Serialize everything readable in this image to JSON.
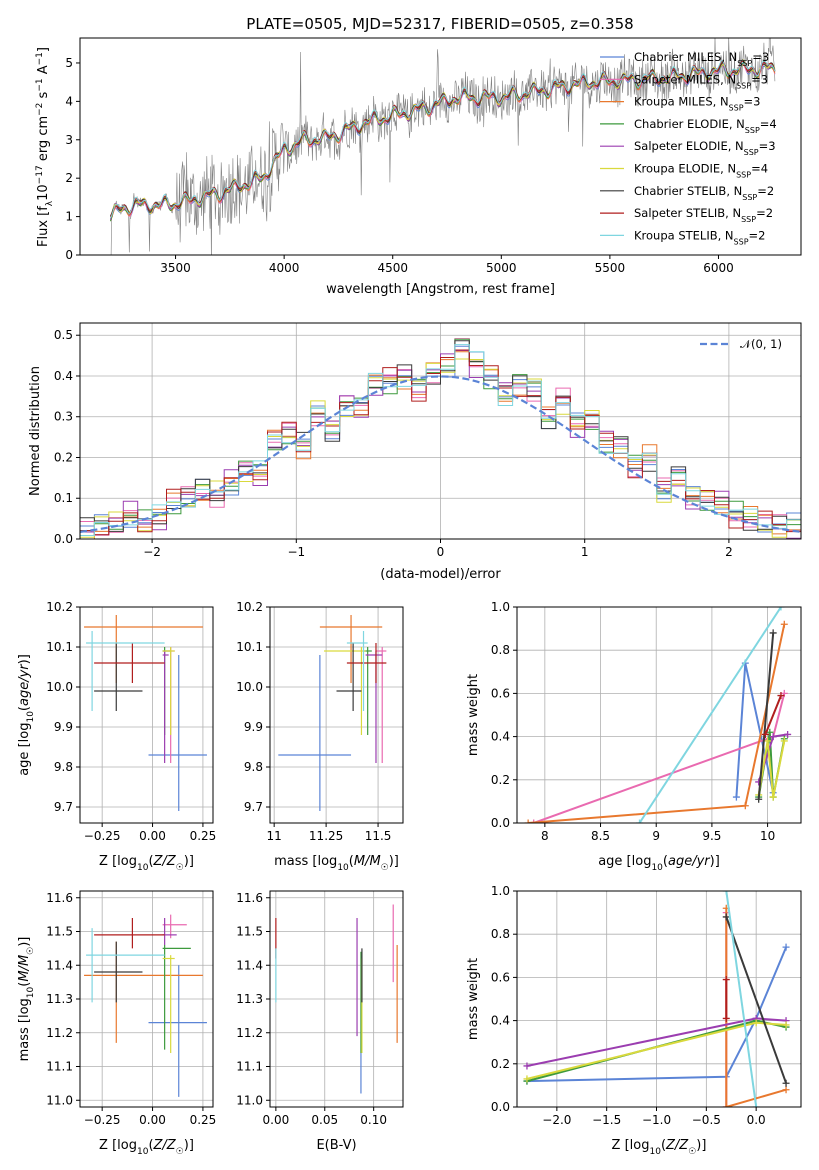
{
  "figure": {
    "title": "PLATE=0505, MJD=52317, FIBERID=0505, z=0.358"
  },
  "series_names": [
    "Chabrier MILES, N_SSP=3",
    "Salpeter MILES, N_SSP=3",
    "Kroupa MILES, N_SSP=3",
    "Chabrier ELODIE, N_SSP=4",
    "Salpeter ELODIE, N_SSP=3",
    "Kroupa ELODIE, N_SSP=4",
    "Chabrier STELIB, N_SSP=2",
    "Salpeter STELIB, N_SSP=2",
    "Kroupa STELIB, N_SSP=2"
  ],
  "colors": [
    "#5b84d6",
    "#e96ab0",
    "#e8782e",
    "#3d9a3d",
    "#9b3db0",
    "#d9d93d",
    "#3a3a3a",
    "#b01e1e",
    "#7fd6e0"
  ],
  "chart_data": [
    {
      "id": "spectrum",
      "type": "line",
      "title": "PLATE=0505, MJD=52317, FIBERID=0505, z=0.358",
      "xlabel": "wavelength [Angstrom, rest frame]",
      "ylabel": "Flux [f_λ 10^-17 erg cm^-2 s^-1 A^-1]",
      "xlim": [
        3060,
        6380
      ],
      "ylim": [
        0,
        5.65
      ],
      "xticks": [
        3500,
        4000,
        4500,
        5000,
        5500,
        6000
      ],
      "yticks": [
        0,
        1,
        2,
        3,
        4,
        5
      ],
      "grid": false,
      "legend": "top-right",
      "data_color": "#808080",
      "model_points": {
        "x": [
          3200,
          3300,
          3450,
          3550,
          3700,
          3800,
          3900,
          4000,
          4100,
          4200,
          4400,
          4600,
          4800,
          5000,
          5200,
          5400,
          5600,
          5800,
          6000,
          6200
        ],
        "y": [
          1.05,
          1.3,
          1.3,
          1.4,
          1.6,
          1.8,
          2.0,
          2.75,
          3.0,
          3.05,
          3.5,
          3.75,
          4.1,
          4.1,
          4.3,
          4.5,
          4.55,
          4.65,
          4.8,
          4.85
        ]
      }
    },
    {
      "id": "residuals",
      "type": "line",
      "xlabel": "(data-model)/error",
      "ylabel": "Normed distribution",
      "xlim": [
        -2.5,
        2.5
      ],
      "ylim": [
        0,
        0.53
      ],
      "xticks": [
        -2,
        -1,
        0,
        1,
        2
      ],
      "yticks": [
        0.0,
        0.1,
        0.2,
        0.3,
        0.4,
        0.5
      ],
      "grid": true,
      "legend": "top-right",
      "reference_label": "𝒩(0, 1)",
      "reference_color": "#5b84d6",
      "bin_centers": [
        -2.45,
        -2.35,
        -2.25,
        -2.15,
        -2.05,
        -1.95,
        -1.85,
        -1.75,
        -1.65,
        -1.55,
        -1.45,
        -1.35,
        -1.25,
        -1.15,
        -1.05,
        -0.95,
        -0.85,
        -0.75,
        -0.65,
        -0.55,
        -0.45,
        -0.35,
        -0.25,
        -0.15,
        -0.05,
        0.05,
        0.15,
        0.25,
        0.35,
        0.45,
        0.55,
        0.65,
        0.75,
        0.85,
        0.95,
        1.05,
        1.15,
        1.25,
        1.35,
        1.45,
        1.55,
        1.65,
        1.75,
        1.85,
        1.95,
        2.05,
        2.15,
        2.25,
        2.35,
        2.45
      ],
      "histogram": [
        0.02,
        0.03,
        0.04,
        0.06,
        0.04,
        0.05,
        0.09,
        0.1,
        0.12,
        0.11,
        0.14,
        0.17,
        0.16,
        0.24,
        0.26,
        0.23,
        0.31,
        0.27,
        0.33,
        0.32,
        0.38,
        0.39,
        0.4,
        0.37,
        0.41,
        0.43,
        0.47,
        0.43,
        0.4,
        0.36,
        0.38,
        0.37,
        0.3,
        0.34,
        0.28,
        0.29,
        0.24,
        0.23,
        0.18,
        0.2,
        0.12,
        0.15,
        0.1,
        0.1,
        0.09,
        0.06,
        0.05,
        0.04,
        0.03,
        0.03
      ]
    },
    {
      "id": "Z-age",
      "type": "scatter",
      "xlabel": "Z [log10(Z/Z☉)]",
      "ylabel": "age [log10(age/yr)]",
      "xlim": [
        -0.36,
        0.3
      ],
      "ylim": [
        9.66,
        10.2
      ],
      "xticks": [
        -0.25,
        0.0,
        0.25
      ],
      "xtick_labels": [
        "−0.25",
        "0.00",
        "0.25"
      ],
      "yticks": [
        9.7,
        9.8,
        9.9,
        10.0,
        10.1,
        10.2
      ],
      "grid": true,
      "points": [
        {
          "x": 0.13,
          "y": 9.83,
          "xerr": [
            0.15,
            0.14
          ],
          "yerr": [
            0.14,
            0.25
          ]
        },
        {
          "x": 0.09,
          "y": 10.09,
          "xerr": [
            0.04,
            0.02
          ],
          "yerr": [
            0.28,
            0.01
          ]
        },
        {
          "x": -0.18,
          "y": 10.15,
          "xerr": [
            0.16,
            0.43
          ],
          "yerr": [
            0.14,
            0.03
          ]
        },
        {
          "x": 0.06,
          "y": 10.09,
          "xerr": [
            0.01,
            0.03
          ],
          "yerr": [
            0.21,
            0.01
          ]
        },
        {
          "x": 0.06,
          "y": 10.08,
          "xerr": [
            0.01,
            0.02
          ],
          "yerr": [
            0.27,
            0.01
          ]
        },
        {
          "x": 0.09,
          "y": 10.09,
          "xerr": [
            0.04,
            0.02
          ],
          "yerr": [
            0.21,
            0.01
          ]
        },
        {
          "x": -0.18,
          "y": 9.99,
          "xerr": [
            0.11,
            0.13
          ],
          "yerr": [
            0.05,
            0.12
          ]
        },
        {
          "x": -0.1,
          "y": 10.06,
          "xerr": [
            0.19,
            0.16
          ],
          "yerr": [
            0.05,
            0.05
          ]
        },
        {
          "x": -0.3,
          "y": 10.11,
          "xerr": [
            0.03,
            0.36
          ],
          "yerr": [
            0.17,
            0.03
          ]
        }
      ]
    },
    {
      "id": "mass-age",
      "type": "scatter",
      "xlabel": "mass [log10(M/M☉)]",
      "ylabel": "",
      "xlim": [
        10.98,
        11.62
      ],
      "ylim": [
        9.66,
        10.2
      ],
      "xticks": [
        11.0,
        11.25,
        11.5
      ],
      "yticks": [
        9.7,
        9.8,
        9.9,
        10.0,
        10.1,
        10.2
      ],
      "grid": true,
      "points": [
        {
          "x": 11.22,
          "y": 9.83,
          "xerr": [
            0.2,
            0.15
          ],
          "yerr": [
            0.14,
            0.25
          ]
        },
        {
          "x": 11.52,
          "y": 10.09,
          "xerr": [
            0.03,
            0.02
          ],
          "yerr": [
            0.28,
            0.01
          ]
        },
        {
          "x": 11.37,
          "y": 10.15,
          "xerr": [
            0.15,
            0.15
          ],
          "yerr": [
            0.14,
            0.03
          ]
        },
        {
          "x": 11.45,
          "y": 10.09,
          "xerr": [
            0.02,
            0.02
          ],
          "yerr": [
            0.21,
            0.01
          ]
        },
        {
          "x": 11.49,
          "y": 10.08,
          "xerr": [
            0.05,
            0.03
          ],
          "yerr": [
            0.27,
            0.01
          ]
        },
        {
          "x": 11.42,
          "y": 10.09,
          "xerr": [
            0.18,
            0.02
          ],
          "yerr": [
            0.21,
            0.01
          ]
        },
        {
          "x": 11.38,
          "y": 9.99,
          "xerr": [
            0.08,
            0.04
          ],
          "yerr": [
            0.05,
            0.12
          ]
        },
        {
          "x": 11.49,
          "y": 10.06,
          "xerr": [
            0.14,
            0.05
          ],
          "yerr": [
            0.05,
            0.05
          ]
        },
        {
          "x": 11.43,
          "y": 10.11,
          "xerr": [
            0.08,
            0.02
          ],
          "yerr": [
            0.17,
            0.03
          ]
        }
      ]
    },
    {
      "id": "age-weight",
      "type": "line",
      "xlabel": "age [log10(age/yr)]",
      "ylabel": "mass weight",
      "xlim": [
        7.75,
        10.3
      ],
      "ylim": [
        0,
        1
      ],
      "xticks": [
        8.0,
        8.5,
        9.0,
        9.5,
        10.0
      ],
      "yticks": [
        0.0,
        0.2,
        0.4,
        0.6,
        0.8,
        1.0
      ],
      "grid": true,
      "series": [
        {
          "name": "Chabrier MILES, N_SSP=3",
          "x": [
            9.72,
            9.8,
            10.05
          ],
          "y": [
            0.12,
            0.74,
            0.14
          ]
        },
        {
          "name": "Salpeter MILES, N_SSP=3",
          "x": [
            7.9,
            10.05,
            10.15
          ],
          "y": [
            0.0,
            0.4,
            0.6
          ]
        },
        {
          "name": "Kroupa MILES, N_SSP=3",
          "x": [
            7.85,
            9.8,
            10.15
          ],
          "y": [
            0.0,
            0.08,
            0.92
          ]
        },
        {
          "name": "Chabrier ELODIE, N_SSP=4",
          "x": [
            9.92,
            10.02,
            10.05,
            10.15
          ],
          "y": [
            0.12,
            0.42,
            0.12,
            0.39
          ]
        },
        {
          "name": "Salpeter ELODIE, N_SSP=3",
          "x": [
            9.92,
            10.05,
            10.18
          ],
          "y": [
            0.19,
            0.4,
            0.41
          ]
        },
        {
          "name": "Kroupa ELODIE, N_SSP=4",
          "x": [
            9.92,
            10.0,
            10.05,
            10.15
          ],
          "y": [
            0.13,
            0.38,
            0.12,
            0.38
          ]
        },
        {
          "name": "Chabrier STELIB, N_SSP=2",
          "x": [
            9.92,
            10.05
          ],
          "y": [
            0.11,
            0.88
          ]
        },
        {
          "name": "Salpeter STELIB, N_SSP=2",
          "x": [
            9.98,
            10.12
          ],
          "y": [
            0.41,
            0.59
          ]
        },
        {
          "name": "Kroupa STELIB, N_SSP=2",
          "x": [
            8.85,
            10.12
          ],
          "y": [
            0.0,
            1.0
          ]
        }
      ]
    },
    {
      "id": "Z-mass",
      "type": "scatter",
      "xlabel": "Z [log10(Z/Z☉)]",
      "ylabel": "mass [log10(M/M☉)]",
      "xlim": [
        -0.36,
        0.3
      ],
      "ylim": [
        10.98,
        11.62
      ],
      "xticks": [
        -0.25,
        0.0,
        0.25
      ],
      "xtick_labels": [
        "−0.25",
        "0.00",
        "0.25"
      ],
      "yticks": [
        11.0,
        11.1,
        11.2,
        11.3,
        11.4,
        11.5,
        11.6
      ],
      "grid": true,
      "points": [
        {
          "x": 0.13,
          "y": 11.23,
          "xerr": [
            0.15,
            0.14
          ],
          "yerr": [
            0.22,
            0.17
          ]
        },
        {
          "x": 0.09,
          "y": 11.52,
          "xerr": [
            0.04,
            0.08
          ],
          "yerr": [
            0.04,
            0.03
          ]
        },
        {
          "x": -0.18,
          "y": 11.37,
          "xerr": [
            0.16,
            0.43
          ],
          "yerr": [
            0.2,
            0.1
          ]
        },
        {
          "x": 0.06,
          "y": 11.45,
          "xerr": [
            0.01,
            0.13
          ],
          "yerr": [
            0.3,
            0.01
          ]
        },
        {
          "x": 0.06,
          "y": 11.49,
          "xerr": [
            0.01,
            0.06
          ],
          "yerr": [
            0.03,
            0.05
          ]
        },
        {
          "x": 0.09,
          "y": 11.42,
          "xerr": [
            0.04,
            0.02
          ],
          "yerr": [
            0.28,
            0.01
          ]
        },
        {
          "x": -0.18,
          "y": 11.38,
          "xerr": [
            0.11,
            0.13
          ],
          "yerr": [
            0.09,
            0.09
          ]
        },
        {
          "x": -0.1,
          "y": 11.49,
          "xerr": [
            0.19,
            0.16
          ],
          "yerr": [
            0.04,
            0.05
          ]
        },
        {
          "x": -0.3,
          "y": 11.43,
          "xerr": [
            0.03,
            0.36
          ],
          "yerr": [
            0.14,
            0.08
          ]
        }
      ]
    },
    {
      "id": "ebv-mass",
      "type": "scatter",
      "xlabel": "E(B-V)",
      "ylabel": "",
      "xlim": [
        -0.006,
        0.13
      ],
      "ylim": [
        10.98,
        11.62
      ],
      "xticks": [
        0.0,
        0.05,
        0.1
      ],
      "xtick_labels": [
        "0.00",
        "0.05",
        "0.10"
      ],
      "yticks": [
        11.0,
        11.1,
        11.2,
        11.3,
        11.4,
        11.5,
        11.6
      ],
      "grid": true,
      "points": [
        {
          "x": 0.087,
          "y": 11.1,
          "xerr": [
            0,
            0
          ],
          "yerr": [
            0.08,
            0.04
          ]
        },
        {
          "x": 0.12,
          "y": 11.48,
          "xerr": [
            0,
            0
          ],
          "yerr": [
            0.13,
            0.1
          ]
        },
        {
          "x": 0.124,
          "y": 11.37,
          "xerr": [
            0,
            0
          ],
          "yerr": [
            0.2,
            0.09
          ]
        },
        {
          "x": 0.087,
          "y": 11.34,
          "xerr": [
            0,
            0
          ],
          "yerr": [
            0.2,
            0.1
          ]
        },
        {
          "x": 0.083,
          "y": 11.39,
          "xerr": [
            0,
            0
          ],
          "yerr": [
            0.2,
            0.15
          ]
        },
        {
          "x": 0.088,
          "y": 11.3,
          "xerr": [
            0,
            0
          ],
          "yerr": [
            0.16,
            0.12
          ]
        },
        {
          "x": 0.088,
          "y": 11.39,
          "xerr": [
            0,
            0
          ],
          "yerr": [
            0.1,
            0.06
          ]
        },
        {
          "x": 0.0,
          "y": 11.47,
          "xerr": [
            0,
            0
          ],
          "yerr": [
            0.05,
            0.07
          ]
        },
        {
          "x": 0.0,
          "y": 11.37,
          "xerr": [
            0,
            0
          ],
          "yerr": [
            0.08,
            0.08
          ]
        }
      ]
    },
    {
      "id": "Z-weight",
      "type": "line",
      "xlabel": "Z [log10(Z/Z☉)]",
      "ylabel": "mass weight",
      "xlim": [
        -2.4,
        0.45
      ],
      "ylim": [
        0,
        1
      ],
      "xticks": [
        -2.0,
        -1.5,
        -1.0,
        -0.5,
        0.0
      ],
      "xtick_labels": [
        "−2.0",
        "−1.5",
        "−1.0",
        "−0.5",
        "0.0"
      ],
      "yticks": [
        0.0,
        0.2,
        0.4,
        0.6,
        0.8,
        1.0
      ],
      "grid": true,
      "series": [
        {
          "name": "Chabrier MILES, N_SSP=3",
          "x": [
            -2.3,
            -0.3,
            0.0,
            0.3
          ],
          "y": [
            0.12,
            0.14,
            0.41,
            0.74
          ]
        },
        {
          "name": "Salpeter MILES, N_SSP=3",
          "x": [
            -0.3,
            -0.3
          ],
          "y": [
            0.0,
            0.9
          ]
        },
        {
          "name": "Kroupa MILES, N_SSP=3",
          "x": [
            -0.3,
            -0.3,
            0.3
          ],
          "y": [
            0.92,
            0.0,
            0.08
          ]
        },
        {
          "name": "Chabrier ELODIE, N_SSP=4",
          "x": [
            -2.3,
            0.0,
            0.3
          ],
          "y": [
            0.12,
            0.4,
            0.37
          ]
        },
        {
          "name": "Salpeter ELODIE, N_SSP=3",
          "x": [
            -2.3,
            0.0,
            0.3
          ],
          "y": [
            0.19,
            0.41,
            0.4
          ]
        },
        {
          "name": "Kroupa ELODIE, N_SSP=4",
          "x": [
            -2.3,
            0.0,
            0.3
          ],
          "y": [
            0.13,
            0.39,
            0.38
          ]
        },
        {
          "name": "Chabrier STELIB, N_SSP=2",
          "x": [
            -0.3,
            0.3
          ],
          "y": [
            0.88,
            0.11
          ]
        },
        {
          "name": "Salpeter STELIB, N_SSP=2",
          "x": [
            -0.3,
            -0.3
          ],
          "y": [
            0.41,
            0.59
          ]
        },
        {
          "name": "Kroupa STELIB, N_SSP=2",
          "x": [
            -0.3,
            0.0
          ],
          "y": [
            1.0,
            0.0
          ]
        }
      ]
    }
  ]
}
